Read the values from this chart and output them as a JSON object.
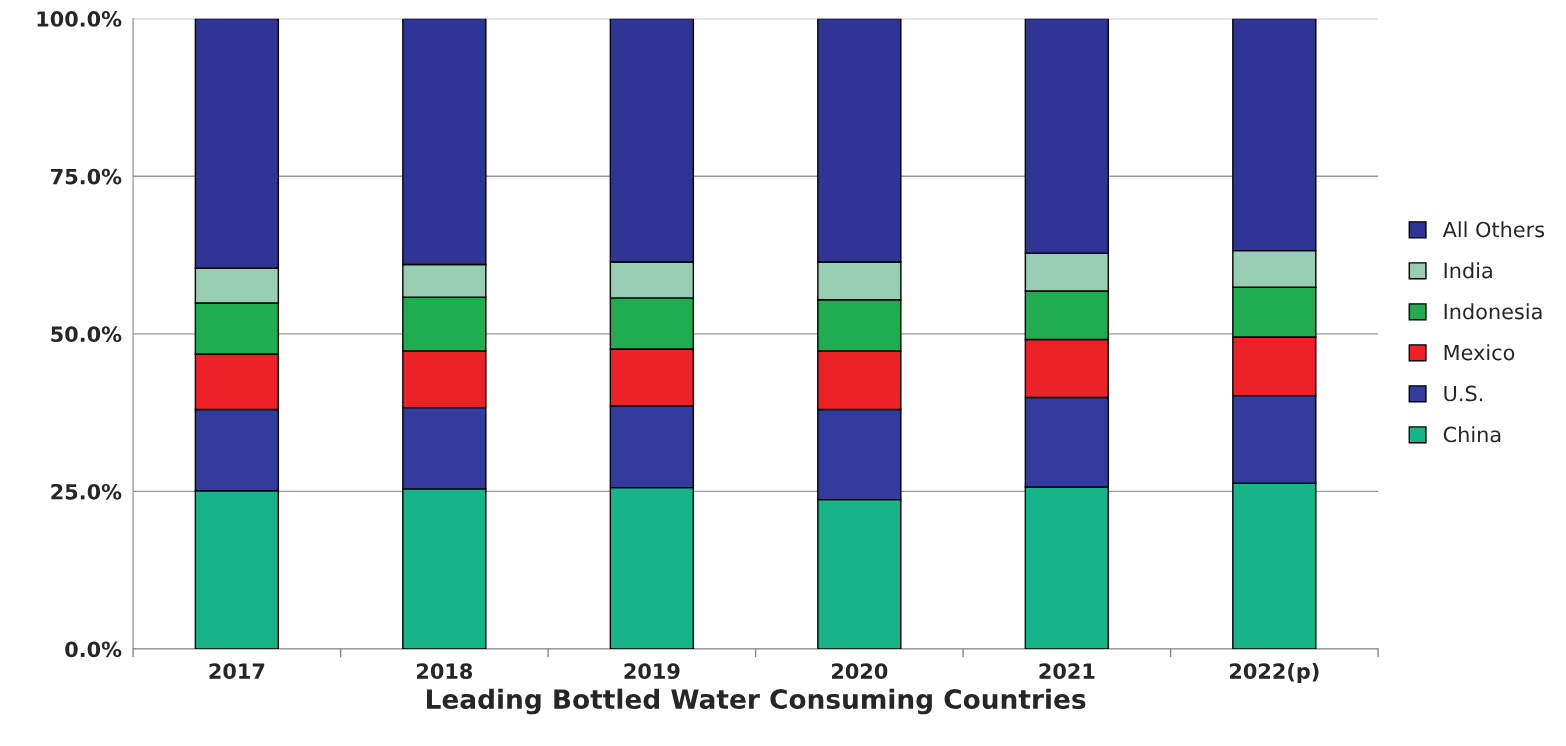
{
  "chart_data": {
    "type": "bar",
    "stacked": true,
    "xlabel": "Leading Bottled Water Consuming Countries",
    "categories": [
      "2017",
      "2018",
      "2019",
      "2020",
      "2021",
      "2022(p)"
    ],
    "series": [
      {
        "name": "China",
        "color": "#17b48a",
        "values": [
          25.1,
          25.4,
          25.6,
          23.7,
          25.7,
          26.3
        ]
      },
      {
        "name": "U.S.",
        "color": "#333b9e",
        "values": [
          12.9,
          12.9,
          13.0,
          14.3,
          14.2,
          13.9
        ]
      },
      {
        "name": "Mexico",
        "color": "#ec2227",
        "values": [
          8.8,
          9.0,
          9.0,
          9.3,
          9.2,
          9.3
        ]
      },
      {
        "name": "Indonesia",
        "color": "#1fad4f",
        "values": [
          8.1,
          8.5,
          8.1,
          8.1,
          7.7,
          7.9
        ]
      },
      {
        "name": "India",
        "color": "#96cdb3",
        "values": [
          5.5,
          5.2,
          5.7,
          6.0,
          6.0,
          5.8
        ]
      },
      {
        "name": "All Others",
        "color": "#2e3594",
        "values": [
          39.6,
          39.0,
          38.6,
          38.6,
          37.2,
          36.8
        ]
      }
    ],
    "ylim": [
      0,
      100
    ],
    "yticks": [
      {
        "value": 0,
        "label": "0.0%"
      },
      {
        "value": 25,
        "label": "25.0%"
      },
      {
        "value": 50,
        "label": "50.0%"
      },
      {
        "value": 75,
        "label": "75.0%"
      },
      {
        "value": 100,
        "label": "100.0%"
      }
    ],
    "grid": "y",
    "legend": "right"
  }
}
